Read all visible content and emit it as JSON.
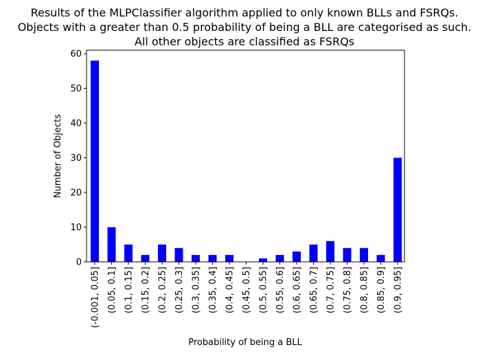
{
  "chart_data": {
    "type": "bar",
    "title_lines": [
      "Results of the MLPClassifier algorithm applied to only known BLLs and FSRQs.",
      "Objects with a greater than 0.5 probability of being a BLL are categorised as such.",
      "All other objects are classified as FSRQs"
    ],
    "xlabel": "Probability of being a BLL",
    "ylabel": "Number of Objects",
    "categories": [
      "(-0.001, 0.05]",
      "(0.05, 0.1]",
      "(0.1, 0.15]",
      "(0.15, 0.2]",
      "(0.2, 0.25]",
      "(0.25, 0.3]",
      "(0.3, 0.35]",
      "(0.35, 0.4]",
      "(0.4, 0.45]",
      "(0.45, 0.5]",
      "(0.5, 0.55]",
      "(0.55, 0.6]",
      "(0.6, 0.65]",
      "(0.65, 0.7]",
      "(0.7, 0.75]",
      "(0.75, 0.8]",
      "(0.8, 0.85]",
      "(0.85, 0.9]",
      "(0.9, 0.95]"
    ],
    "values": [
      58,
      10,
      5,
      2,
      5,
      4,
      2,
      2,
      2,
      0,
      1,
      2,
      3,
      5,
      6,
      4,
      4,
      2,
      30
    ],
    "yticks": [
      0,
      10,
      20,
      30,
      40,
      50,
      60
    ],
    "ylim": [
      0,
      61
    ],
    "bar_color": "#0000ff",
    "grid": false,
    "legend": "none"
  }
}
